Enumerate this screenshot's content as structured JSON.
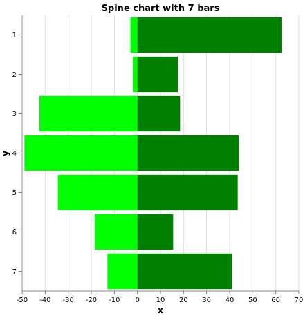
{
  "chart_data": {
    "type": "bar",
    "orientation": "horizontal",
    "stacked": "diverging",
    "title": "Spine chart with 7 bars",
    "xlabel": "x",
    "ylabel": "y",
    "xlim": [
      -50,
      70
    ],
    "x_ticks": [
      -50,
      -40,
      -30,
      -20,
      -10,
      0,
      10,
      20,
      30,
      40,
      50,
      60,
      70
    ],
    "categories": [
      "1",
      "2",
      "3",
      "4",
      "5",
      "6",
      "7"
    ],
    "series": [
      {
        "color": "#00ff00",
        "values": [
          -3,
          -2,
          -42.5,
          -49,
          -34.5,
          -18.5,
          -13
        ]
      },
      {
        "color": "#008000",
        "values": [
          62.5,
          17.5,
          18.5,
          44,
          43.5,
          15.5,
          41
        ]
      }
    ],
    "grid": {
      "x": true,
      "y": false
    },
    "legend": "none"
  }
}
